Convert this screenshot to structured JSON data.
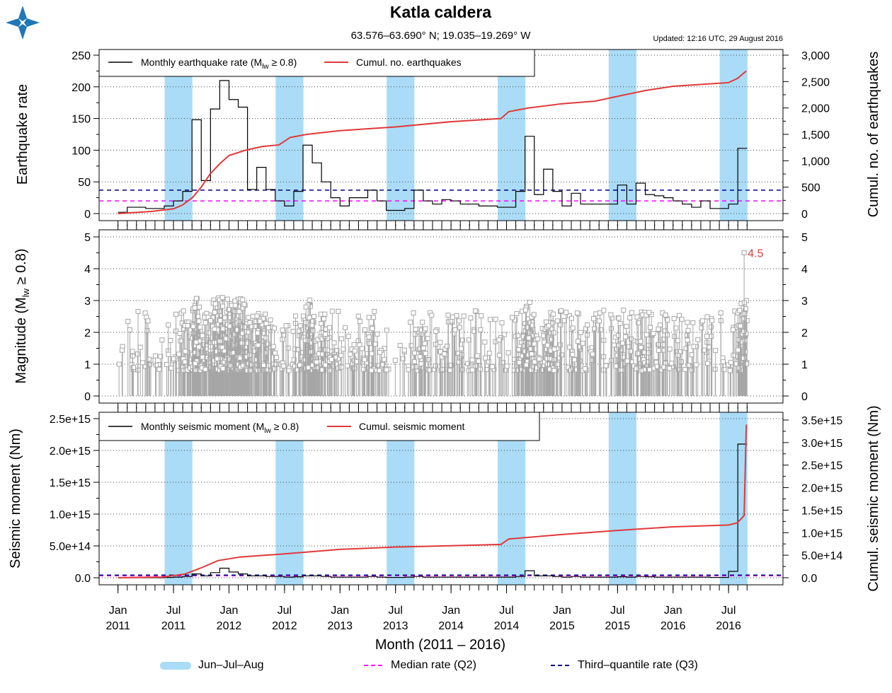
{
  "header": {
    "title": "Katla caldera",
    "subtitle": "63.576–63.690° N; 19.035–19.269° W",
    "updated": "Updated: 12:16 UTC, 29 August 2016"
  },
  "colors": {
    "monthly": "#000000",
    "cumulative": "#e0393a",
    "band": "#aadcf7",
    "median": "#ff00ff",
    "q3": "#000080",
    "stem": "#a6a6a6",
    "max_label": "#e0393a"
  },
  "chart_data": [
    {
      "id": "rate",
      "type": "line",
      "ylabel": "Earthquake rate",
      "ylabel2": "Cumul. no. of earthquakes",
      "ylim": [
        0,
        250
      ],
      "yticks": [
        "0",
        "50",
        "100",
        "150",
        "200",
        "250"
      ],
      "ylim2": [
        0,
        3000
      ],
      "yticks2": [
        "0",
        "500",
        "1,000",
        "1,500",
        "2,000",
        "2,500",
        "3,000"
      ],
      "legend_monthly": "Monthly earthquake rate (M",
      "legend_monthly_sub": "lw",
      "legend_monthly_tail": " ≥ 0.8)",
      "legend_cum": "Cumul. no. earthquakes",
      "legend_position": "top-left",
      "monthly_values": [
        2,
        10,
        10,
        8,
        8,
        12,
        20,
        35,
        148,
        52,
        165,
        210,
        180,
        168,
        38,
        73,
        38,
        20,
        12,
        35,
        108,
        80,
        50,
        25,
        12,
        25,
        25,
        37,
        20,
        5,
        5,
        8,
        37,
        20,
        15,
        22,
        20,
        15,
        15,
        12,
        12,
        10,
        10,
        35,
        122,
        30,
        70,
        35,
        12,
        32,
        15,
        15,
        15,
        15,
        45,
        15,
        48,
        30,
        28,
        25,
        20,
        15,
        10,
        20,
        8,
        8,
        15,
        103
      ],
      "cumulative": [
        {
          "x": 2011.0,
          "y": 0
        },
        {
          "x": 2011.3,
          "y": 40
        },
        {
          "x": 2011.5,
          "y": 90
        },
        {
          "x": 2011.58,
          "y": 160
        },
        {
          "x": 2011.67,
          "y": 300
        },
        {
          "x": 2011.75,
          "y": 500
        },
        {
          "x": 2011.83,
          "y": 750
        },
        {
          "x": 2011.92,
          "y": 950
        },
        {
          "x": 2012.0,
          "y": 1100
        },
        {
          "x": 2012.15,
          "y": 1200
        },
        {
          "x": 2012.3,
          "y": 1270
        },
        {
          "x": 2012.45,
          "y": 1300
        },
        {
          "x": 2012.55,
          "y": 1440
        },
        {
          "x": 2012.7,
          "y": 1500
        },
        {
          "x": 2013.0,
          "y": 1570
        },
        {
          "x": 2013.5,
          "y": 1640
        },
        {
          "x": 2014.0,
          "y": 1740
        },
        {
          "x": 2014.45,
          "y": 1800
        },
        {
          "x": 2014.52,
          "y": 1930
        },
        {
          "x": 2014.7,
          "y": 2000
        },
        {
          "x": 2015.0,
          "y": 2080
        },
        {
          "x": 2015.3,
          "y": 2130
        },
        {
          "x": 2015.5,
          "y": 2220
        },
        {
          "x": 2015.75,
          "y": 2330
        },
        {
          "x": 2016.0,
          "y": 2410
        },
        {
          "x": 2016.5,
          "y": 2480
        },
        {
          "x": 2016.58,
          "y": 2560
        },
        {
          "x": 2016.66,
          "y": 2700
        }
      ],
      "median_rate": 20,
      "q3_rate": 37
    },
    {
      "id": "magnitude",
      "type": "scatter",
      "ylabel": "Magnitude (M",
      "ylabel_sub": "lw",
      "ylabel_tail": " ≥ 0.8)",
      "ylim": [
        0,
        5
      ],
      "yticks": [
        "0",
        "1",
        "2",
        "3",
        "4",
        "5"
      ],
      "max_magnitude": 4.5,
      "max_label": "4.5",
      "max_date": 2016.64
    },
    {
      "id": "moment",
      "type": "line",
      "ylabel": "Seismic moment (Nm)",
      "ylabel2": "Cumul. seismic moment (Nm)",
      "ylim": [
        0,
        2500000000000000.0
      ],
      "yticks": [
        "0.0",
        "5.0e+14",
        "1.0e+15",
        "1.5e+15",
        "2.0e+15",
        "2.5e+15"
      ],
      "ylim2": [
        0,
        3500000000000000.0
      ],
      "yticks2": [
        "0.0",
        "5.0e+14",
        "1.0e+15",
        "1.5e+15",
        "2.0e+15",
        "2.5e+15",
        "3.0e+15",
        "3.5e+15"
      ],
      "legend_monthly": "Monthly seismic moment (M",
      "legend_monthly_sub": "lw",
      "legend_monthly_tail": " ≥ 0.8)",
      "legend_cum": "Cumul. seismic moment",
      "legend_position": "top-left",
      "monthly_values": [
        0.0,
        0.0,
        0.0,
        0.0,
        0.0,
        5000000000000.0,
        10000000000000.0,
        20000000000000.0,
        60000000000000.0,
        30000000000000.0,
        80000000000000.0,
        150000000000000.0,
        90000000000000.0,
        60000000000000.0,
        30000000000000.0,
        30000000000000.0,
        20000000000000.0,
        20000000000000.0,
        10000000000000.0,
        15000000000000.0,
        30000000000000.0,
        30000000000000.0,
        20000000000000.0,
        10000000000000.0,
        10000000000000.0,
        10000000000000.0,
        10000000000000.0,
        20000000000000.0,
        10000000000000.0,
        5000000000000.0,
        5000000000000.0,
        10000000000000.0,
        20000000000000.0,
        10000000000000.0,
        10000000000000.0,
        10000000000000.0,
        10000000000000.0,
        10000000000000.0,
        10000000000000.0,
        10000000000000.0,
        10000000000000.0,
        10000000000000.0,
        10000000000000.0,
        20000000000000.0,
        110000000000000.0,
        30000000000000.0,
        30000000000000.0,
        20000000000000.0,
        10000000000000.0,
        20000000000000.0,
        10000000000000.0,
        10000000000000.0,
        10000000000000.0,
        10000000000000.0,
        15000000000000.0,
        10000000000000.0,
        20000000000000.0,
        15000000000000.0,
        10000000000000.0,
        10000000000000.0,
        10000000000000.0,
        10000000000000.0,
        10000000000000.0,
        10000000000000.0,
        5000000000000.0,
        5000000000000.0,
        100000000000000.0,
        2100000000000000.0
      ],
      "cumulative": [
        {
          "x": 2011.0,
          "y": 0
        },
        {
          "x": 2011.4,
          "y": 15000000000000.0
        },
        {
          "x": 2011.6,
          "y": 80000000000000.0
        },
        {
          "x": 2011.75,
          "y": 220000000000000.0
        },
        {
          "x": 2011.9,
          "y": 380000000000000.0
        },
        {
          "x": 2012.1,
          "y": 460000000000000.0
        },
        {
          "x": 2012.5,
          "y": 530000000000000.0
        },
        {
          "x": 2013.0,
          "y": 630000000000000.0
        },
        {
          "x": 2013.5,
          "y": 680000000000000.0
        },
        {
          "x": 2014.0,
          "y": 710000000000000.0
        },
        {
          "x": 2014.45,
          "y": 740000000000000.0
        },
        {
          "x": 2014.52,
          "y": 860000000000000.0
        },
        {
          "x": 2015.0,
          "y": 960000000000000.0
        },
        {
          "x": 2015.5,
          "y": 1050000000000000.0
        },
        {
          "x": 2016.0,
          "y": 1130000000000000.0
        },
        {
          "x": 2016.5,
          "y": 1170000000000000.0
        },
        {
          "x": 2016.58,
          "y": 1220000000000000.0
        },
        {
          "x": 2016.64,
          "y": 1380000000000000.0
        },
        {
          "x": 2016.66,
          "y": 3400000000000000.0
        }
      ],
      "median_rate": 20000000000000.0,
      "q3_rate": 30000000000000.0
    }
  ],
  "x_axis": {
    "label": "Month (2011 – 2016)",
    "ticks": [
      {
        "x": 2011.0,
        "top": "Jan",
        "bottom": "2011"
      },
      {
        "x": 2011.5,
        "top": "Jul",
        "bottom": "2011"
      },
      {
        "x": 2012.0,
        "top": "Jan",
        "bottom": "2012"
      },
      {
        "x": 2012.5,
        "top": "Jul",
        "bottom": "2012"
      },
      {
        "x": 2013.0,
        "top": "Jan",
        "bottom": "2013"
      },
      {
        "x": 2013.5,
        "top": "Jul",
        "bottom": "2013"
      },
      {
        "x": 2014.0,
        "top": "Jan",
        "bottom": "2014"
      },
      {
        "x": 2014.5,
        "top": "Jul",
        "bottom": "2014"
      },
      {
        "x": 2015.0,
        "top": "Jan",
        "bottom": "2015"
      },
      {
        "x": 2015.5,
        "top": "Jul",
        "bottom": "2015"
      },
      {
        "x": 2016.0,
        "top": "Jan",
        "bottom": "2016"
      },
      {
        "x": 2016.5,
        "top": "Jul",
        "bottom": "2016"
      }
    ],
    "range": [
      2010.83,
      2016.99
    ]
  },
  "bands": [
    {
      "start": 2011.42,
      "end": 2011.67
    },
    {
      "start": 2012.42,
      "end": 2012.67
    },
    {
      "start": 2013.42,
      "end": 2013.67
    },
    {
      "start": 2014.42,
      "end": 2014.67
    },
    {
      "start": 2015.42,
      "end": 2015.67
    },
    {
      "start": 2016.42,
      "end": 2016.67
    }
  ],
  "legend": {
    "band": "Jun–Jul–Aug",
    "median": "Median rate (Q2)",
    "q3": "Third–quantile rate (Q3)"
  }
}
